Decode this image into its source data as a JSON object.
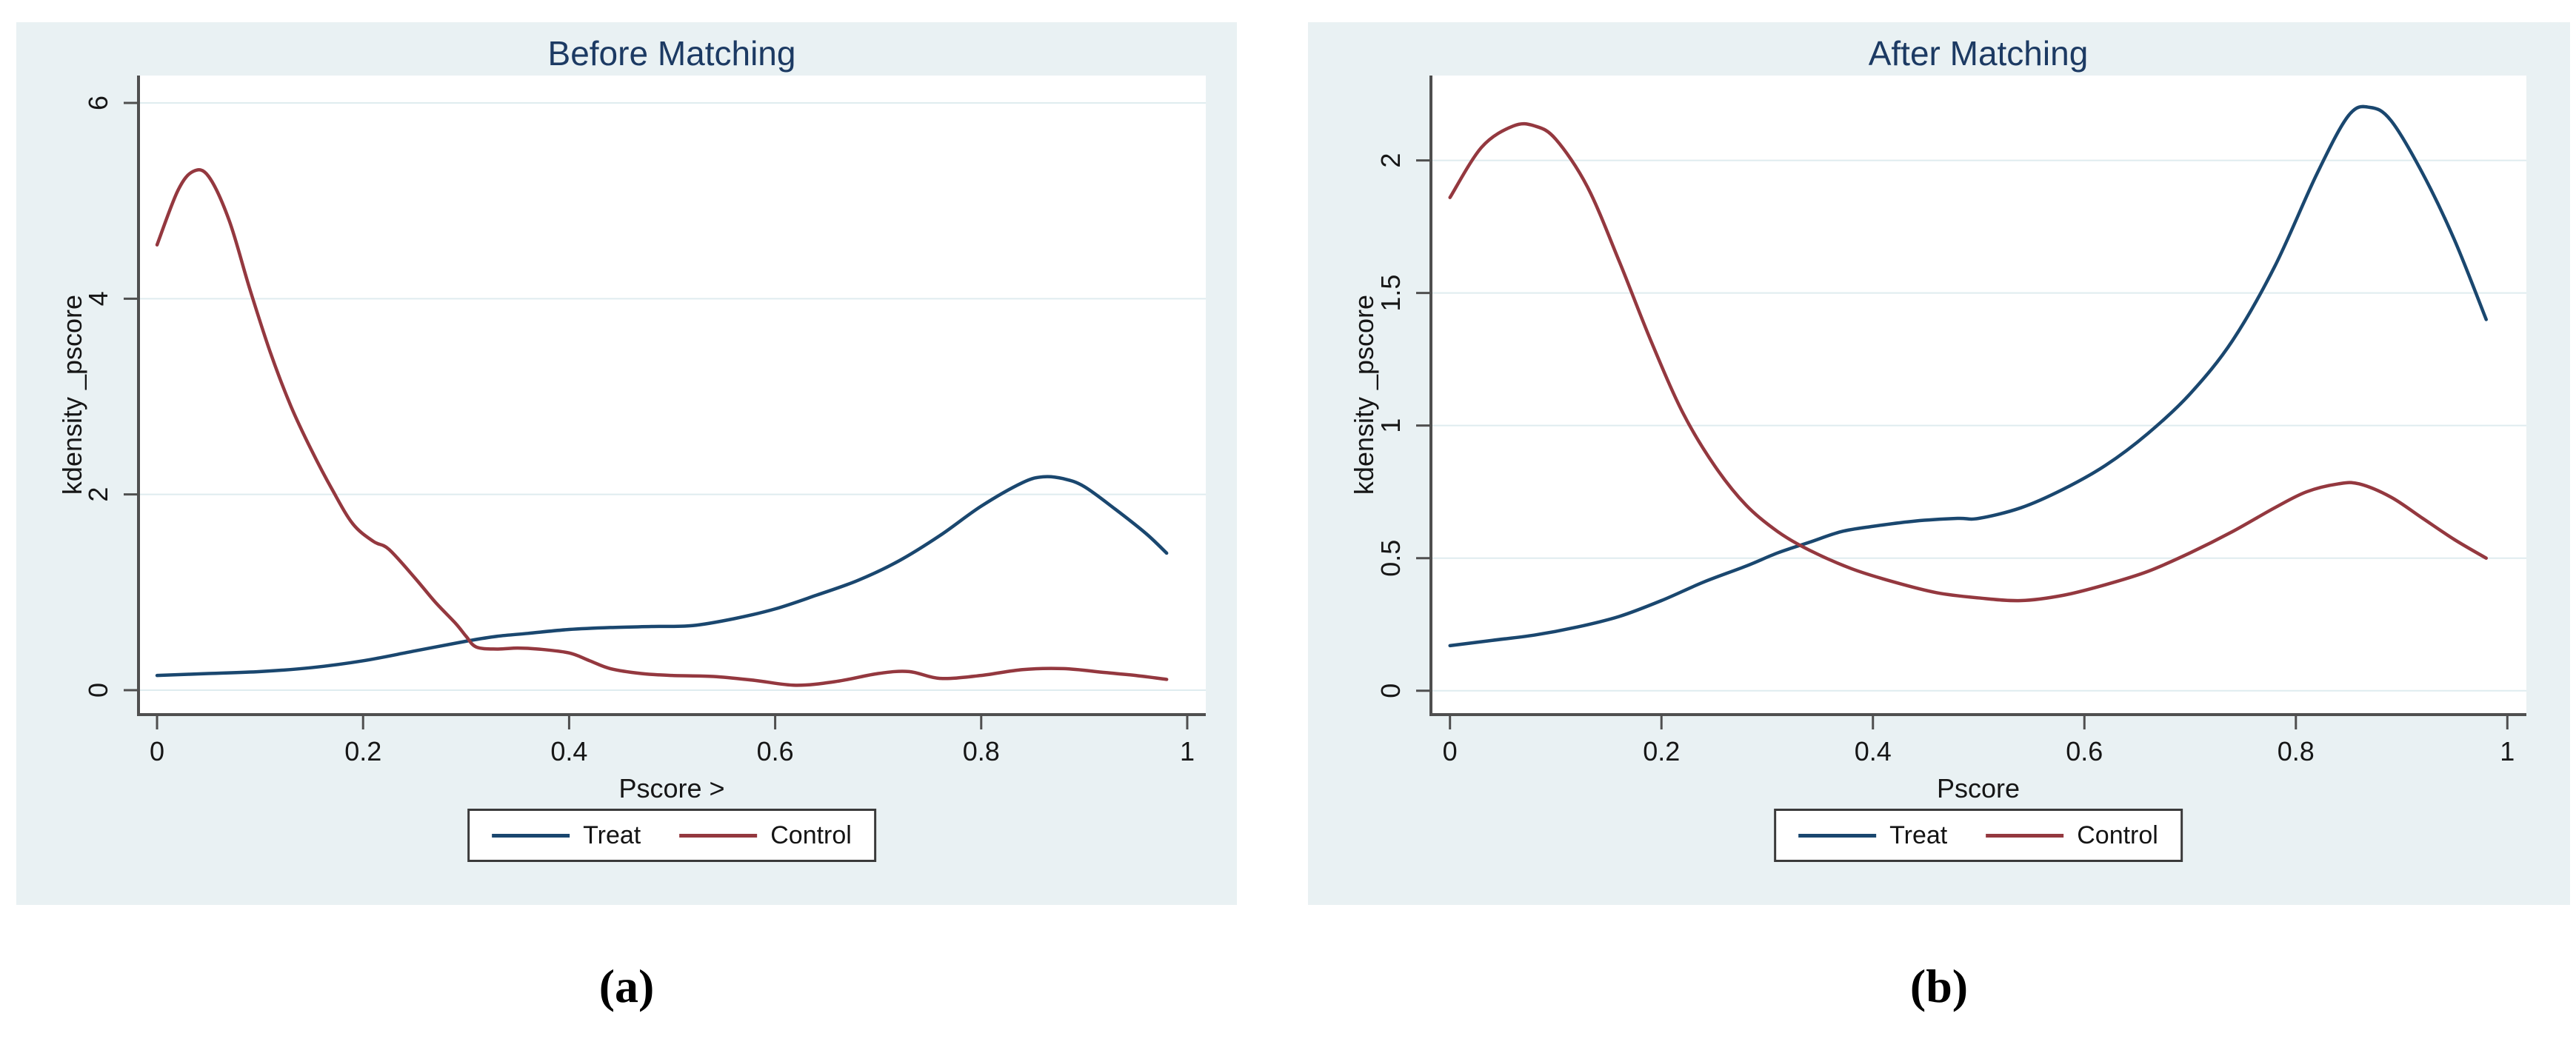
{
  "figure": {
    "caption_a": "(a)",
    "caption_b": "(b)"
  },
  "colors": {
    "panel_background": "#e9f1f3",
    "plot_background": "#ffffff",
    "gridline": "#dfecef",
    "axis_line": "#4f4f4f",
    "title_text": "#1c3a63",
    "treat_line": "#1a476f",
    "control_line": "#94383f",
    "legend_border": "#3a3a3a"
  },
  "chart_data": [
    {
      "type": "line",
      "title": "Before Matching",
      "xlabel": "Pscore >",
      "ylabel": "kdensity _pscore",
      "xlim": [
        -0.018,
        1.018
      ],
      "ylim": [
        -0.25,
        6.28
      ],
      "xticks": [
        0,
        0.2,
        0.4,
        0.6,
        0.8,
        1
      ],
      "xtick_labels": [
        "0",
        "0.2",
        "0.4",
        "0.6",
        "0.8",
        "1"
      ],
      "yticks": [
        0,
        2,
        4,
        6
      ],
      "ytick_labels": [
        "0",
        "2",
        "4",
        "6"
      ],
      "grid": "horizontal",
      "legend_position": "bottom",
      "series": [
        {
          "name": "Treat",
          "color": "#1a476f",
          "points": [
            [
              0,
              0.15
            ],
            [
              0.05,
              0.17
            ],
            [
              0.1,
              0.19
            ],
            [
              0.15,
              0.23
            ],
            [
              0.2,
              0.3
            ],
            [
              0.25,
              0.4
            ],
            [
              0.3,
              0.5
            ],
            [
              0.33,
              0.55
            ],
            [
              0.36,
              0.58
            ],
            [
              0.4,
              0.62
            ],
            [
              0.44,
              0.64
            ],
            [
              0.48,
              0.65
            ],
            [
              0.52,
              0.66
            ],
            [
              0.56,
              0.73
            ],
            [
              0.6,
              0.83
            ],
            [
              0.64,
              0.97
            ],
            [
              0.68,
              1.12
            ],
            [
              0.72,
              1.32
            ],
            [
              0.76,
              1.58
            ],
            [
              0.8,
              1.88
            ],
            [
              0.84,
              2.12
            ],
            [
              0.86,
              2.18
            ],
            [
              0.88,
              2.16
            ],
            [
              0.9,
              2.08
            ],
            [
              0.93,
              1.85
            ],
            [
              0.96,
              1.6
            ],
            [
              0.98,
              1.4
            ]
          ]
        },
        {
          "name": "Control",
          "color": "#94383f",
          "points": [
            [
              0,
              4.55
            ],
            [
              0.02,
              5.1
            ],
            [
              0.035,
              5.3
            ],
            [
              0.05,
              5.25
            ],
            [
              0.07,
              4.8
            ],
            [
              0.09,
              4.1
            ],
            [
              0.11,
              3.45
            ],
            [
              0.13,
              2.9
            ],
            [
              0.15,
              2.45
            ],
            [
              0.17,
              2.05
            ],
            [
              0.19,
              1.7
            ],
            [
              0.21,
              1.52
            ],
            [
              0.225,
              1.44
            ],
            [
              0.25,
              1.15
            ],
            [
              0.27,
              0.9
            ],
            [
              0.29,
              0.68
            ],
            [
              0.3,
              0.55
            ],
            [
              0.31,
              0.44
            ],
            [
              0.33,
              0.42
            ],
            [
              0.35,
              0.43
            ],
            [
              0.37,
              0.42
            ],
            [
              0.4,
              0.38
            ],
            [
              0.42,
              0.3
            ],
            [
              0.44,
              0.22
            ],
            [
              0.47,
              0.17
            ],
            [
              0.5,
              0.15
            ],
            [
              0.54,
              0.14
            ],
            [
              0.58,
              0.1
            ],
            [
              0.62,
              0.05
            ],
            [
              0.66,
              0.09
            ],
            [
              0.7,
              0.17
            ],
            [
              0.73,
              0.19
            ],
            [
              0.76,
              0.12
            ],
            [
              0.8,
              0.15
            ],
            [
              0.84,
              0.21
            ],
            [
              0.88,
              0.22
            ],
            [
              0.92,
              0.18
            ],
            [
              0.95,
              0.15
            ],
            [
              0.98,
              0.11
            ]
          ]
        }
      ]
    },
    {
      "type": "line",
      "title": "After Matching",
      "xlabel": "Pscore",
      "ylabel": "kdensity _pscore",
      "xlim": [
        -0.018,
        1.018
      ],
      "ylim": [
        -0.09,
        2.32
      ],
      "xticks": [
        0,
        0.2,
        0.4,
        0.6,
        0.8,
        1
      ],
      "xtick_labels": [
        "0",
        "0.2",
        "0.4",
        "0.6",
        "0.8",
        "1"
      ],
      "yticks": [
        0,
        0.5,
        1,
        1.5,
        2
      ],
      "ytick_labels": [
        "0",
        "0.5",
        "1",
        "1.5",
        "2"
      ],
      "grid": "horizontal",
      "legend_position": "bottom",
      "series": [
        {
          "name": "Treat",
          "color": "#1a476f",
          "points": [
            [
              0,
              0.17
            ],
            [
              0.04,
              0.19
            ],
            [
              0.08,
              0.21
            ],
            [
              0.12,
              0.24
            ],
            [
              0.16,
              0.28
            ],
            [
              0.2,
              0.34
            ],
            [
              0.24,
              0.41
            ],
            [
              0.28,
              0.47
            ],
            [
              0.31,
              0.52
            ],
            [
              0.34,
              0.56
            ],
            [
              0.37,
              0.6
            ],
            [
              0.4,
              0.62
            ],
            [
              0.44,
              0.64
            ],
            [
              0.48,
              0.65
            ],
            [
              0.5,
              0.65
            ],
            [
              0.54,
              0.69
            ],
            [
              0.58,
              0.76
            ],
            [
              0.62,
              0.85
            ],
            [
              0.66,
              0.97
            ],
            [
              0.7,
              1.12
            ],
            [
              0.74,
              1.32
            ],
            [
              0.78,
              1.6
            ],
            [
              0.82,
              1.95
            ],
            [
              0.85,
              2.17
            ],
            [
              0.87,
              2.2
            ],
            [
              0.89,
              2.15
            ],
            [
              0.92,
              1.95
            ],
            [
              0.95,
              1.7
            ],
            [
              0.98,
              1.4
            ]
          ]
        },
        {
          "name": "Control",
          "color": "#94383f",
          "points": [
            [
              0,
              1.86
            ],
            [
              0.03,
              2.05
            ],
            [
              0.06,
              2.13
            ],
            [
              0.08,
              2.13
            ],
            [
              0.1,
              2.08
            ],
            [
              0.13,
              1.9
            ],
            [
              0.16,
              1.62
            ],
            [
              0.19,
              1.32
            ],
            [
              0.22,
              1.05
            ],
            [
              0.25,
              0.85
            ],
            [
              0.28,
              0.7
            ],
            [
              0.31,
              0.6
            ],
            [
              0.34,
              0.53
            ],
            [
              0.38,
              0.46
            ],
            [
              0.42,
              0.41
            ],
            [
              0.46,
              0.37
            ],
            [
              0.5,
              0.35
            ],
            [
              0.54,
              0.34
            ],
            [
              0.58,
              0.36
            ],
            [
              0.62,
              0.4
            ],
            [
              0.66,
              0.45
            ],
            [
              0.7,
              0.52
            ],
            [
              0.74,
              0.6
            ],
            [
              0.78,
              0.69
            ],
            [
              0.81,
              0.75
            ],
            [
              0.84,
              0.78
            ],
            [
              0.86,
              0.78
            ],
            [
              0.89,
              0.73
            ],
            [
              0.92,
              0.65
            ],
            [
              0.95,
              0.57
            ],
            [
              0.98,
              0.5
            ]
          ]
        }
      ]
    }
  ]
}
